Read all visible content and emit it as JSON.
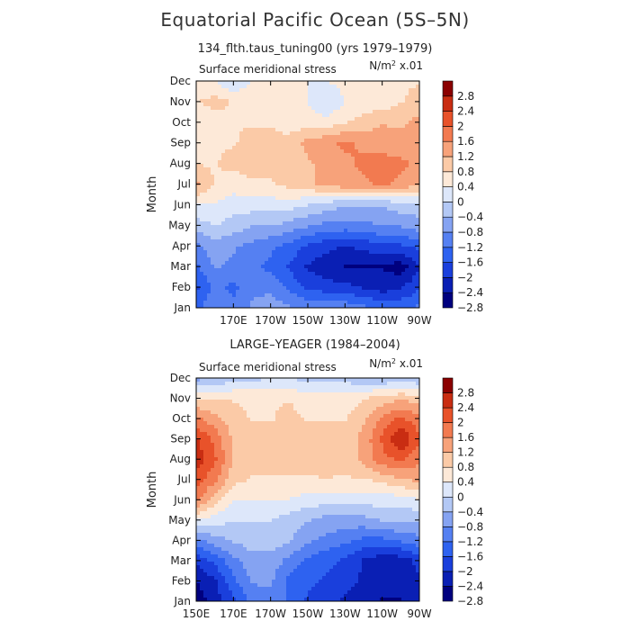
{
  "page_title": "Equatorial Pacific Ocean (5S–5N)",
  "colors": {
    "levels": [
      "#00007f",
      "#0a1fb4",
      "#1a3fdc",
      "#2e62f0",
      "#5580f2",
      "#85a3f2",
      "#b3c8f5",
      "#dde7fa",
      "#fde9d8",
      "#fbcaa7",
      "#f7a27a",
      "#f27a50",
      "#e8522a",
      "#c92d12",
      "#8b0000"
    ]
  },
  "chart_data": [
    {
      "type": "heatmap",
      "subtitle": "134_flth.taus_tuning00 (yrs 1979–1979)",
      "panel_label": "Surface meridional stress",
      "units": "N/m",
      "units_sup": "2",
      "units_scale": " x.01",
      "ylabel": "Month",
      "yticks": [
        "Jan",
        "Feb",
        "Mar",
        "Apr",
        "May",
        "Jun",
        "Jul",
        "Aug",
        "Sep",
        "Oct",
        "Nov",
        "Dec"
      ],
      "xticks": [
        "170E",
        "170W",
        "150W",
        "130W",
        "110W",
        "90W"
      ],
      "x_range": [
        "150E",
        "90W"
      ],
      "colorbar_labels": [
        "2.8",
        "2.4",
        "2",
        "1.6",
        "1.2",
        "0.8",
        "0.4",
        "0",
        "−0.4",
        "−0.8",
        "−1.2",
        "−1.6",
        "−2",
        "−2.4",
        "−2.8"
      ],
      "zlim": [
        -3.2,
        3.2
      ],
      "x_lon": [
        150,
        160,
        170,
        180,
        190,
        200,
        210,
        220,
        230,
        240,
        250,
        260,
        270
      ],
      "values": [
        [
          -1.6,
          -1.2,
          -1.4,
          -1.0,
          -0.8,
          -1.0,
          -1.2,
          -1.0,
          -1.2,
          -1.4,
          -1.6,
          -1.6,
          -1.4
        ],
        [
          -2.0,
          -1.4,
          -1.6,
          -1.2,
          -1.2,
          -1.6,
          -2.0,
          -2.2,
          -2.2,
          -2.4,
          -2.6,
          -2.4,
          -2.0
        ],
        [
          -1.6,
          -1.0,
          -1.2,
          -1.4,
          -1.6,
          -2.0,
          -2.4,
          -2.6,
          -2.8,
          -2.8,
          -2.8,
          -3.0,
          -2.4
        ],
        [
          -1.2,
          -0.8,
          -1.0,
          -1.2,
          -1.4,
          -1.6,
          -2.0,
          -2.2,
          -2.4,
          -2.2,
          -2.0,
          -2.0,
          -1.8
        ],
        [
          -0.4,
          -0.2,
          -0.4,
          -0.6,
          -0.6,
          -0.8,
          -1.0,
          -1.2,
          -1.2,
          -1.2,
          -1.0,
          -1.0,
          -0.8
        ],
        [
          0.2,
          0.2,
          0.0,
          0.0,
          0.0,
          0.0,
          -0.2,
          -0.4,
          -0.6,
          -0.6,
          -0.6,
          -0.4,
          -0.4
        ],
        [
          1.2,
          0.6,
          0.4,
          0.6,
          0.6,
          0.8,
          1.0,
          1.2,
          1.4,
          1.4,
          1.6,
          1.4,
          1.2
        ],
        [
          0.6,
          0.6,
          0.8,
          0.8,
          0.8,
          0.8,
          1.0,
          1.2,
          1.4,
          1.6,
          1.6,
          1.6,
          1.4
        ],
        [
          0.4,
          0.6,
          0.6,
          0.8,
          0.8,
          0.8,
          1.2,
          1.4,
          1.6,
          1.4,
          1.4,
          1.2,
          1.2
        ],
        [
          0.4,
          0.4,
          0.6,
          0.6,
          0.6,
          0.4,
          0.4,
          0.4,
          0.6,
          0.8,
          1.0,
          1.0,
          1.2
        ],
        [
          0.6,
          0.8,
          0.6,
          0.6,
          0.4,
          0.4,
          0.2,
          -0.2,
          0.2,
          0.4,
          0.4,
          0.6,
          0.8
        ],
        [
          0.4,
          0.2,
          -0.2,
          0.2,
          0.4,
          0.4,
          0.2,
          0.2,
          0.4,
          0.6,
          0.6,
          0.6,
          0.6
        ]
      ]
    },
    {
      "type": "heatmap",
      "subtitle": "LARGE–YEAGER (1984–2004)",
      "panel_label": "Surface meridional stress",
      "units": "N/m",
      "units_sup": "2",
      "units_scale": " x.01",
      "ylabel": "Month",
      "yticks": [
        "Jan",
        "Feb",
        "Mar",
        "Apr",
        "May",
        "Jun",
        "Jul",
        "Aug",
        "Sep",
        "Oct",
        "Nov",
        "Dec"
      ],
      "xticks": [
        "150E",
        "170E",
        "170W",
        "150W",
        "130W",
        "110W",
        "90W"
      ],
      "x_range": [
        "150E",
        "90W"
      ],
      "colorbar_labels": [
        "2.8",
        "2.4",
        "2",
        "1.6",
        "1.2",
        "0.8",
        "0.4",
        "0",
        "−0.4",
        "−0.8",
        "−1.2",
        "−1.6",
        "−2",
        "−2.4",
        "−2.8"
      ],
      "zlim": [
        -3.2,
        3.2
      ],
      "x_lon": [
        150,
        160,
        170,
        180,
        190,
        200,
        210,
        220,
        230,
        240,
        250,
        260,
        270
      ],
      "values": [
        [
          -3.0,
          -2.6,
          -2.0,
          -1.4,
          -1.2,
          -1.6,
          -2.0,
          -2.2,
          -2.4,
          -2.6,
          -2.8,
          -2.8,
          -2.4
        ],
        [
          -2.8,
          -2.4,
          -1.6,
          -1.0,
          -1.0,
          -1.6,
          -1.8,
          -2.0,
          -2.2,
          -2.4,
          -2.6,
          -2.6,
          -2.4
        ],
        [
          -2.2,
          -1.8,
          -1.2,
          -0.8,
          -0.8,
          -1.2,
          -1.6,
          -1.8,
          -2.0,
          -2.4,
          -2.6,
          -2.6,
          -2.2
        ],
        [
          -1.2,
          -0.8,
          -0.6,
          -0.4,
          -0.4,
          -0.6,
          -1.0,
          -1.2,
          -1.4,
          -1.6,
          -1.6,
          -1.4,
          -1.2
        ],
        [
          0.2,
          0.0,
          -0.2,
          -0.2,
          -0.2,
          -0.4,
          -0.6,
          -0.8,
          -0.8,
          -0.8,
          -0.6,
          -0.6,
          -0.6
        ],
        [
          1.6,
          0.8,
          0.2,
          0.2,
          0.2,
          0.2,
          0.0,
          0.0,
          0.0,
          0.0,
          0.0,
          0.0,
          0.2
        ],
        [
          2.2,
          1.6,
          0.8,
          0.6,
          0.6,
          0.6,
          0.6,
          0.6,
          0.6,
          0.6,
          0.8,
          1.0,
          1.2
        ],
        [
          2.6,
          2.0,
          1.0,
          0.8,
          0.8,
          0.8,
          0.8,
          1.0,
          0.8,
          1.2,
          1.8,
          2.0,
          1.6
        ],
        [
          2.4,
          1.8,
          1.0,
          0.8,
          0.8,
          0.8,
          0.8,
          0.8,
          0.8,
          1.2,
          2.0,
          2.8,
          2.0
        ],
        [
          1.6,
          1.2,
          0.8,
          0.6,
          0.6,
          0.8,
          0.6,
          0.6,
          0.6,
          1.0,
          1.6,
          2.0,
          1.6
        ],
        [
          0.6,
          0.6,
          0.6,
          0.6,
          0.6,
          0.6,
          0.4,
          0.4,
          0.4,
          0.6,
          0.8,
          1.0,
          0.8
        ],
        [
          -0.8,
          -0.6,
          -0.4,
          -0.4,
          -0.2,
          -0.2,
          -0.4,
          -0.4,
          -0.4,
          -0.6,
          -0.6,
          -0.6,
          -0.6
        ]
      ]
    }
  ]
}
